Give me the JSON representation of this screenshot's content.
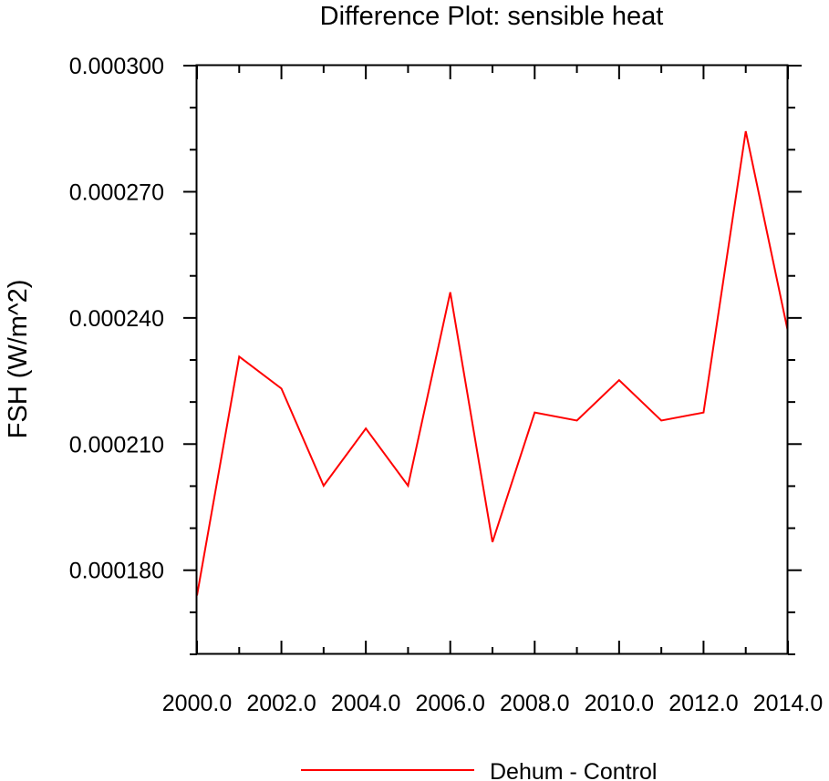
{
  "chart_data": {
    "type": "line",
    "title": "Difference Plot: sensible heat",
    "xlabel": "",
    "ylabel": "FSH  (W/m^2)",
    "xlim": [
      2000,
      2014
    ],
    "ylim": [
      0.00016,
      0.0003
    ],
    "x_ticks": [
      2000,
      2002,
      2004,
      2006,
      2008,
      2010,
      2012,
      2014
    ],
    "x_tick_labels": [
      "2000.0",
      "2002.0",
      "2004.0",
      "2006.0",
      "2008.0",
      "2010.0",
      "2012.0",
      "2014.0"
    ],
    "y_ticks": [
      0.00018,
      0.00021,
      0.00024,
      0.00027,
      0.0003
    ],
    "y_tick_labels": [
      "0.000180",
      "0.000210",
      "0.000240",
      "0.000270",
      "0.000300"
    ],
    "grid": false,
    "legend_position": "bottom-center",
    "series": [
      {
        "name": "Dehum - Control",
        "color": "#ff0000",
        "x": [
          2000,
          2001,
          2002,
          2003,
          2004,
          2005,
          2006,
          2007,
          2008,
          2009,
          2010,
          2011,
          2012,
          2013,
          2014
        ],
        "values": [
          0.000174,
          0.0002308,
          0.0002232,
          0.0002001,
          0.0002137,
          0.0002001,
          0.0002461,
          0.0001867,
          0.0002175,
          0.0002156,
          0.0002252,
          0.0002156,
          0.0002175,
          0.0002844,
          0.0002367
        ]
      }
    ]
  }
}
